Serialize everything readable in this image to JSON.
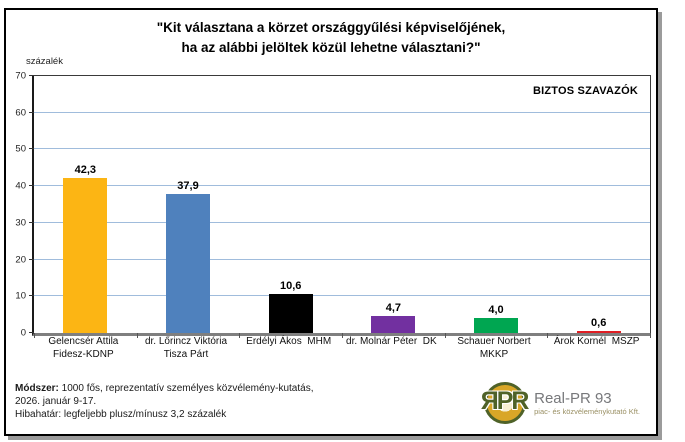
{
  "header": {
    "title_line1": "\"Kit választana a körzet országgyűlési képviselőjének,",
    "title_line2": "ha az alábbi jelöltek közül lehetne választani?\""
  },
  "chart_data": {
    "type": "bar",
    "title": "\"Kit választana a körzet országgyűlési képviselőjének, ha az alábbi jelöltek közül lehetne választani?\"",
    "annotation": "BIZTOS SZAVAZÓK",
    "ylabel": "százalék",
    "xlabel": "",
    "ylim": [
      0,
      70
    ],
    "yticks": [
      0,
      10,
      20,
      30,
      40,
      50,
      60,
      70
    ],
    "grid": true,
    "gridline_color": "#A0BCDC",
    "legend": "none",
    "categories": [
      "Gelencsér Attila Fidesz-KDNP",
      "dr. Lőrincz Viktória Tisza Párt",
      "Erdélyi Ákos MHM",
      "dr. Molnár Péter DK",
      "Schauer Norbert MKKP",
      "Árok Kornél MSZP"
    ],
    "category_label_lines": [
      [
        "Gelencsér Attila",
        "Fidesz-KDNP"
      ],
      [
        "dr. Lőrincz Viktória",
        "Tisza Párt"
      ],
      [
        "Erdélyi Ákos  MHM"
      ],
      [
        "dr. Molnár Péter  DK"
      ],
      [
        "Schauer Norbert",
        "MKKP"
      ],
      [
        "Árok Kornél  MSZP"
      ]
    ],
    "values": [
      42.3,
      37.9,
      10.6,
      4.7,
      4.0,
      0.6
    ],
    "value_labels": [
      "42,3",
      "37,9",
      "10,6",
      "4,7",
      "4,0",
      "0,6"
    ],
    "bar_colors": [
      "#FCB514",
      "#4F81BD",
      "#000000",
      "#7230A0",
      "#00A651",
      "#E01E24"
    ]
  },
  "footer": {
    "method_label": "Módszer:",
    "method_text": " 1000 fős, reprezentatív személyes közvélemény-kutatás,",
    "line2": "2026. január 9-17.",
    "line3": "Hibahatár: legfeljebb plusz/mínusz 3,2 százalék"
  },
  "logo": {
    "monogram": "ЯPR",
    "name": "Real-PR 93",
    "tagline": "piac- és közvéleménykutató Kft.",
    "accent_green": "#4F6228",
    "accent_gold": "#D9A627"
  }
}
